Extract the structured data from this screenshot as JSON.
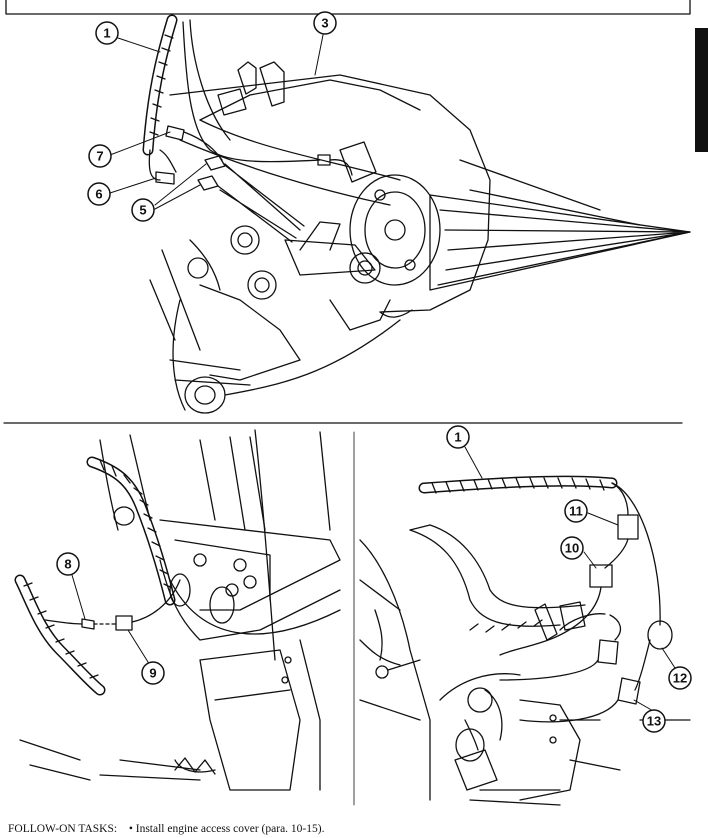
{
  "figures": {
    "top": {
      "callouts": {
        "c1": "1",
        "c3": "3",
        "c5": "5",
        "c6": "6",
        "c7": "7"
      }
    },
    "bottom_left": {
      "callouts": {
        "c8": "8",
        "c9": "9"
      }
    },
    "bottom_right": {
      "callouts": {
        "c1": "1",
        "c10": "10",
        "c11": "11",
        "c12": "12",
        "c13": "13"
      }
    }
  },
  "follow_on": {
    "label": "FOLLOW-ON TASKS:",
    "bullet": "•",
    "task": "Install engine access cover (para. 10-15)."
  }
}
